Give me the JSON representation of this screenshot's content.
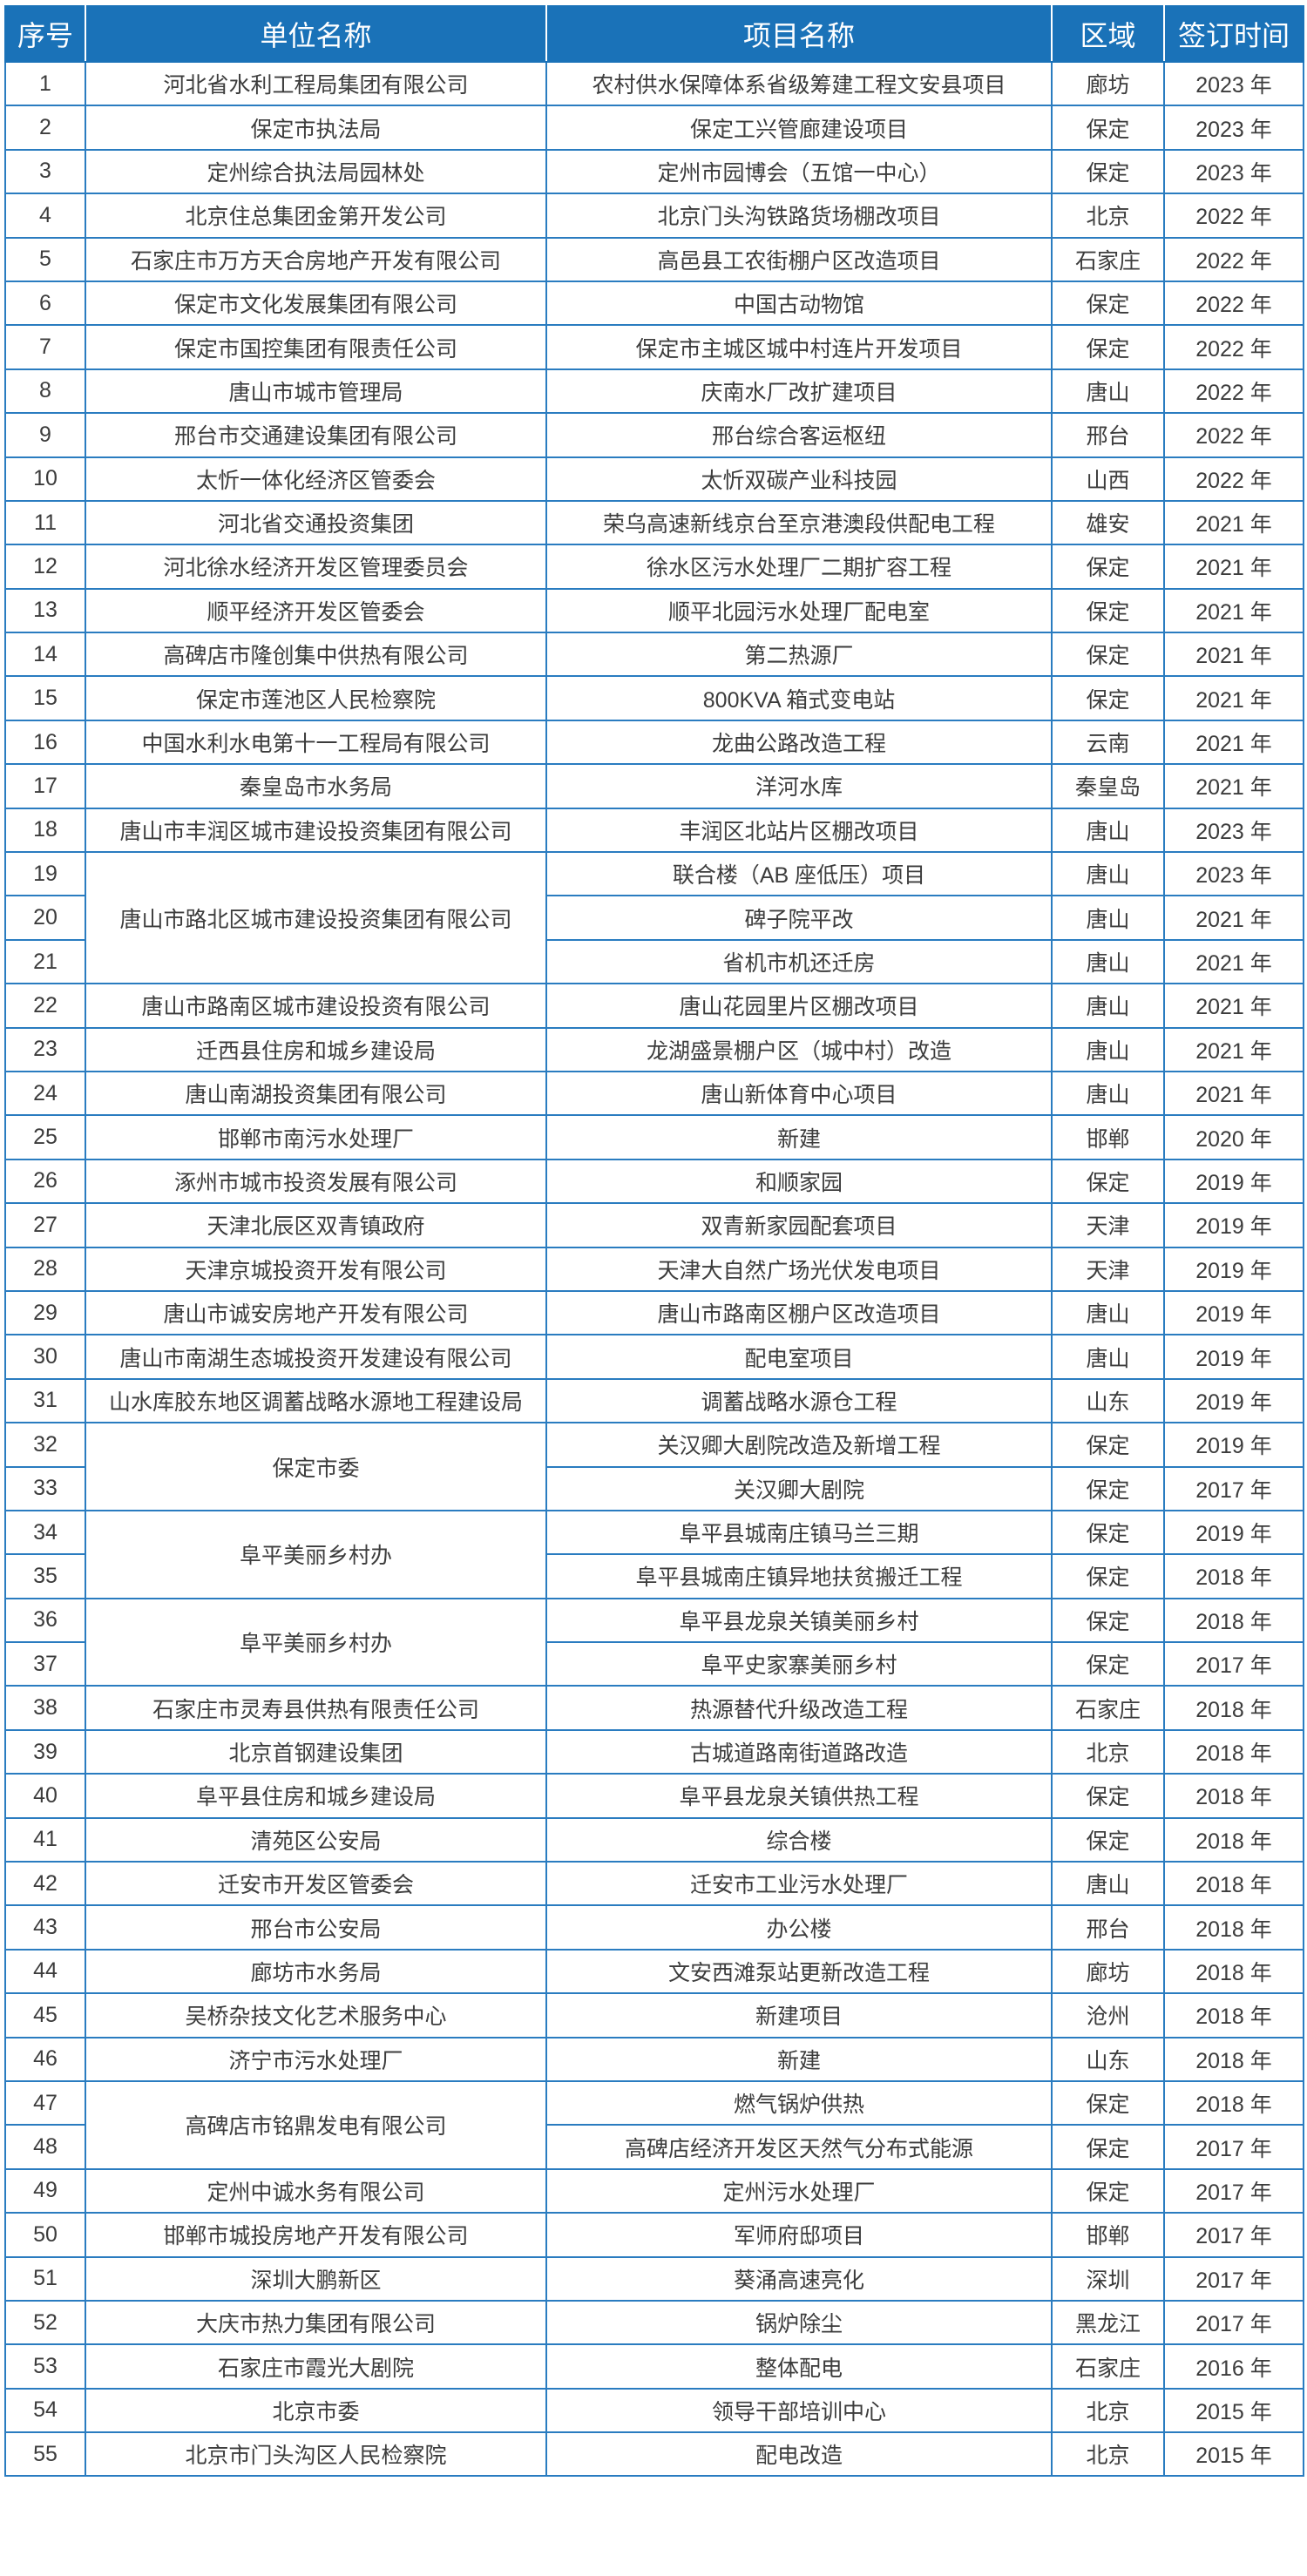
{
  "header": {
    "columns": [
      "序号",
      "单位名称",
      "项目名称",
      "区域",
      "签订时间"
    ]
  },
  "colors": {
    "header_bg": "#1a72b8",
    "border": "#2a7cc0",
    "text": "#3c3c3c"
  },
  "rows": [
    {
      "no": "1",
      "unit": "河北省水利工程局集团有限公司",
      "project": "农村供水保障体系省级筹建工程文安县项目",
      "region": "廊坊",
      "year": "2023 年"
    },
    {
      "no": "2",
      "unit": "保定市执法局",
      "project": "保定工兴管廊建设项目",
      "region": "保定",
      "year": "2023 年"
    },
    {
      "no": "3",
      "unit": "定州综合执法局园林处",
      "project": "定州市园博会（五馆一中心）",
      "region": "保定",
      "year": "2023 年"
    },
    {
      "no": "4",
      "unit": "北京住总集团金第开发公司",
      "project": "北京门头沟铁路货场棚改项目",
      "region": "北京",
      "year": "2022 年"
    },
    {
      "no": "5",
      "unit": "石家庄市万方天合房地产开发有限公司",
      "project": "高邑县工农街棚户区改造项目",
      "region": "石家庄",
      "year": "2022 年"
    },
    {
      "no": "6",
      "unit": "保定市文化发展集团有限公司",
      "project": "中国古动物馆",
      "region": "保定",
      "year": "2022 年"
    },
    {
      "no": "7",
      "unit": "保定市国控集团有限责任公司",
      "project": "保定市主城区城中村连片开发项目",
      "region": "保定",
      "year": "2022 年"
    },
    {
      "no": "8",
      "unit": "唐山市城市管理局",
      "project": "庆南水厂改扩建项目",
      "region": "唐山",
      "year": "2022 年"
    },
    {
      "no": "9",
      "unit": "邢台市交通建设集团有限公司",
      "project": "邢台综合客运枢纽",
      "region": "邢台",
      "year": "2022 年"
    },
    {
      "no": "10",
      "unit": "太忻一体化经济区管委会",
      "project": "太忻双碳产业科技园",
      "region": "山西",
      "year": "2022 年"
    },
    {
      "no": "11",
      "unit": "河北省交通投资集团",
      "project": "荣乌高速新线京台至京港澳段供配电工程",
      "region": "雄安",
      "year": "2021 年"
    },
    {
      "no": "12",
      "unit": "河北徐水经济开发区管理委员会",
      "project": "徐水区污水处理厂二期扩容工程",
      "region": "保定",
      "year": "2021 年"
    },
    {
      "no": "13",
      "unit": "顺平经济开发区管委会",
      "project": "顺平北园污水处理厂配电室",
      "region": "保定",
      "year": "2021 年"
    },
    {
      "no": "14",
      "unit": "高碑店市隆创集中供热有限公司",
      "project": "第二热源厂",
      "region": "保定",
      "year": "2021 年"
    },
    {
      "no": "15",
      "unit": "保定市莲池区人民检察院",
      "project": "800KVA 箱式变电站",
      "region": "保定",
      "year": "2021 年"
    },
    {
      "no": "16",
      "unit": "中国水利水电第十一工程局有限公司",
      "project": "龙曲公路改造工程",
      "region": "云南",
      "year": "2021 年"
    },
    {
      "no": "17",
      "unit": "秦皇岛市水务局",
      "project": "洋河水库",
      "region": "秦皇岛",
      "year": "2021 年"
    },
    {
      "no": "18",
      "unit": "唐山市丰润区城市建设投资集团有限公司",
      "project": "丰润区北站片区棚改项目",
      "region": "唐山",
      "year": "2023 年"
    },
    {
      "no": "19",
      "unit": "唐山市路北区城市建设投资集团有限公司",
      "unit_span": 3,
      "project": "联合楼（AB 座低压）项目",
      "region": "唐山",
      "year": "2023 年"
    },
    {
      "no": "20",
      "project": "碑子院平改",
      "region": "唐山",
      "year": "2021 年"
    },
    {
      "no": "21",
      "project": "省机市机还迁房",
      "region": "唐山",
      "year": "2021 年"
    },
    {
      "no": "22",
      "unit": "唐山市路南区城市建设投资有限公司",
      "project": "唐山花园里片区棚改项目",
      "region": "唐山",
      "year": "2021 年"
    },
    {
      "no": "23",
      "unit": "迁西县住房和城乡建设局",
      "project": "龙湖盛景棚户区（城中村）改造",
      "region": "唐山",
      "year": "2021 年"
    },
    {
      "no": "24",
      "unit": "唐山南湖投资集团有限公司",
      "project": "唐山新体育中心项目",
      "region": "唐山",
      "year": "2021 年"
    },
    {
      "no": "25",
      "unit": "邯郸市南污水处理厂",
      "project": "新建",
      "region": "邯郸",
      "year": "2020 年"
    },
    {
      "no": "26",
      "unit": "涿州市城市投资发展有限公司",
      "project": "和顺家园",
      "region": "保定",
      "year": "2019 年"
    },
    {
      "no": "27",
      "unit": "天津北辰区双青镇政府",
      "project": "双青新家园配套项目",
      "region": "天津",
      "year": "2019 年"
    },
    {
      "no": "28",
      "unit": "天津京城投资开发有限公司",
      "project": "天津大自然广场光伏发电项目",
      "region": "天津",
      "year": "2019 年"
    },
    {
      "no": "29",
      "unit": "唐山市诚安房地产开发有限公司",
      "project": "唐山市路南区棚户区改造项目",
      "region": "唐山",
      "year": "2019 年"
    },
    {
      "no": "30",
      "unit": "唐山市南湖生态城投资开发建设有限公司",
      "project": "配电室项目",
      "region": "唐山",
      "year": "2019 年"
    },
    {
      "no": "31",
      "unit": "山水库胶东地区调蓄战略水源地工程建设局",
      "project": "调蓄战略水源仓工程",
      "region": "山东",
      "year": "2019 年"
    },
    {
      "no": "32",
      "unit": "保定市委",
      "unit_span": 2,
      "project": "关汉卿大剧院改造及新增工程",
      "region": "保定",
      "year": "2019 年"
    },
    {
      "no": "33",
      "project": "关汉卿大剧院",
      "region": "保定",
      "year": "2017 年"
    },
    {
      "no": "34",
      "unit": "阜平美丽乡村办",
      "unit_span": 2,
      "project": "阜平县城南庄镇马兰三期",
      "region": "保定",
      "year": "2019 年"
    },
    {
      "no": "35",
      "project": "阜平县城南庄镇异地扶贫搬迁工程",
      "region": "保定",
      "year": "2018 年"
    },
    {
      "no": "36",
      "unit": "阜平美丽乡村办",
      "unit_span": 2,
      "project": "阜平县龙泉关镇美丽乡村",
      "region": "保定",
      "year": "2018 年"
    },
    {
      "no": "37",
      "project": "阜平史家寨美丽乡村",
      "region": "保定",
      "year": "2017 年"
    },
    {
      "no": "38",
      "unit": "石家庄市灵寿县供热有限责任公司",
      "project": "热源替代升级改造工程",
      "region": "石家庄",
      "year": "2018 年"
    },
    {
      "no": "39",
      "unit": "北京首钢建设集团",
      "project": "古城道路南街道路改造",
      "region": "北京",
      "year": "2018 年"
    },
    {
      "no": "40",
      "unit": "阜平县住房和城乡建设局",
      "project": "阜平县龙泉关镇供热工程",
      "region": "保定",
      "year": "2018 年"
    },
    {
      "no": "41",
      "unit": "清苑区公安局",
      "project": "综合楼",
      "region": "保定",
      "year": "2018 年"
    },
    {
      "no": "42",
      "unit": "迁安市开发区管委会",
      "project": "迁安市工业污水处理厂",
      "region": "唐山",
      "year": "2018 年"
    },
    {
      "no": "43",
      "unit": "邢台市公安局",
      "project": "办公楼",
      "region": "邢台",
      "year": "2018 年"
    },
    {
      "no": "44",
      "unit": "廊坊市水务局",
      "project": "文安西滩泵站更新改造工程",
      "region": "廊坊",
      "year": "2018 年"
    },
    {
      "no": "45",
      "unit": "吴桥杂技文化艺术服务中心",
      "project": "新建项目",
      "region": "沧州",
      "year": "2018 年"
    },
    {
      "no": "46",
      "unit": "济宁市污水处理厂",
      "project": "新建",
      "region": "山东",
      "year": "2018 年"
    },
    {
      "no": "47",
      "unit": "高碑店市铭鼎发电有限公司",
      "unit_span": 2,
      "project": "燃气锅炉供热",
      "region": "保定",
      "year": "2018 年"
    },
    {
      "no": "48",
      "project": "高碑店经济开发区天然气分布式能源",
      "region": "保定",
      "year": "2017 年"
    },
    {
      "no": "49",
      "unit": "定州中诚水务有限公司",
      "project": "定州污水处理厂",
      "region": "保定",
      "year": "2017 年"
    },
    {
      "no": "50",
      "unit": "邯郸市城投房地产开发有限公司",
      "project": "军师府邸项目",
      "region": "邯郸",
      "year": "2017 年"
    },
    {
      "no": "51",
      "unit": "深圳大鹏新区",
      "project": "葵涌高速亮化",
      "region": "深圳",
      "year": "2017 年"
    },
    {
      "no": "52",
      "unit": "大庆市热力集团有限公司",
      "project": "锅炉除尘",
      "region": "黑龙江",
      "year": "2017 年"
    },
    {
      "no": "53",
      "unit": "石家庄市霞光大剧院",
      "project": "整体配电",
      "region": "石家庄",
      "year": "2016 年"
    },
    {
      "no": "54",
      "unit": "北京市委",
      "project": "领导干部培训中心",
      "region": "北京",
      "year": "2015 年"
    },
    {
      "no": "55",
      "unit": "北京市门头沟区人民检察院",
      "project": "配电改造",
      "region": "北京",
      "year": "2015 年"
    }
  ]
}
